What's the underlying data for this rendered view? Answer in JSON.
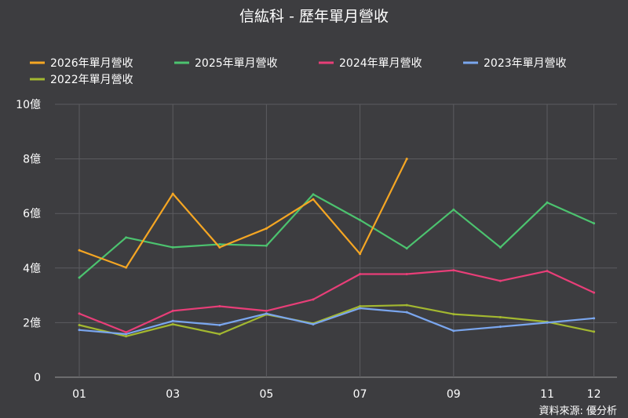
{
  "chart_data": {
    "type": "line",
    "title": "信紘科 - 歷年單月營收",
    "categories": [
      "01",
      "02",
      "03",
      "04",
      "05",
      "06",
      "07",
      "08",
      "09",
      "10",
      "11",
      "12"
    ],
    "x_tick_labels": [
      "01",
      "03",
      "05",
      "07",
      "09",
      "11",
      "12"
    ],
    "y_tick_labels": [
      "0",
      "2億",
      "4億",
      "6億",
      "8億",
      "10億"
    ],
    "ylim": [
      0,
      10
    ],
    "grid": true,
    "legend_position": "top",
    "series": [
      {
        "name": "2026年單月營收",
        "color": "#f5a623",
        "values": [
          4.65,
          4.02,
          6.72,
          4.76,
          5.45,
          6.52,
          4.52,
          8.0,
          null,
          null,
          null,
          null
        ]
      },
      {
        "name": "2025年單月營收",
        "color": "#4cc36f",
        "values": [
          3.65,
          5.12,
          4.76,
          4.87,
          4.82,
          6.7,
          5.76,
          4.72,
          6.14,
          4.76,
          6.4,
          5.64
        ]
      },
      {
        "name": "2024年單月營收",
        "color": "#e83e78",
        "values": [
          2.33,
          1.65,
          2.43,
          2.6,
          2.43,
          2.85,
          3.78,
          3.78,
          3.92,
          3.53,
          3.89,
          3.1
        ]
      },
      {
        "name": "2023年單月營收",
        "color": "#7aa6ee",
        "values": [
          1.73,
          1.58,
          2.06,
          1.91,
          2.33,
          1.94,
          2.53,
          2.38,
          1.7,
          1.85,
          2.0,
          2.16
        ]
      },
      {
        "name": "2022年單月營收",
        "color": "#a3b830",
        "values": [
          1.91,
          1.5,
          1.94,
          1.58,
          2.3,
          1.97,
          2.6,
          2.64,
          2.31,
          2.2,
          2.03,
          1.67
        ]
      }
    ],
    "source_note": "資料來源: 優分析"
  }
}
